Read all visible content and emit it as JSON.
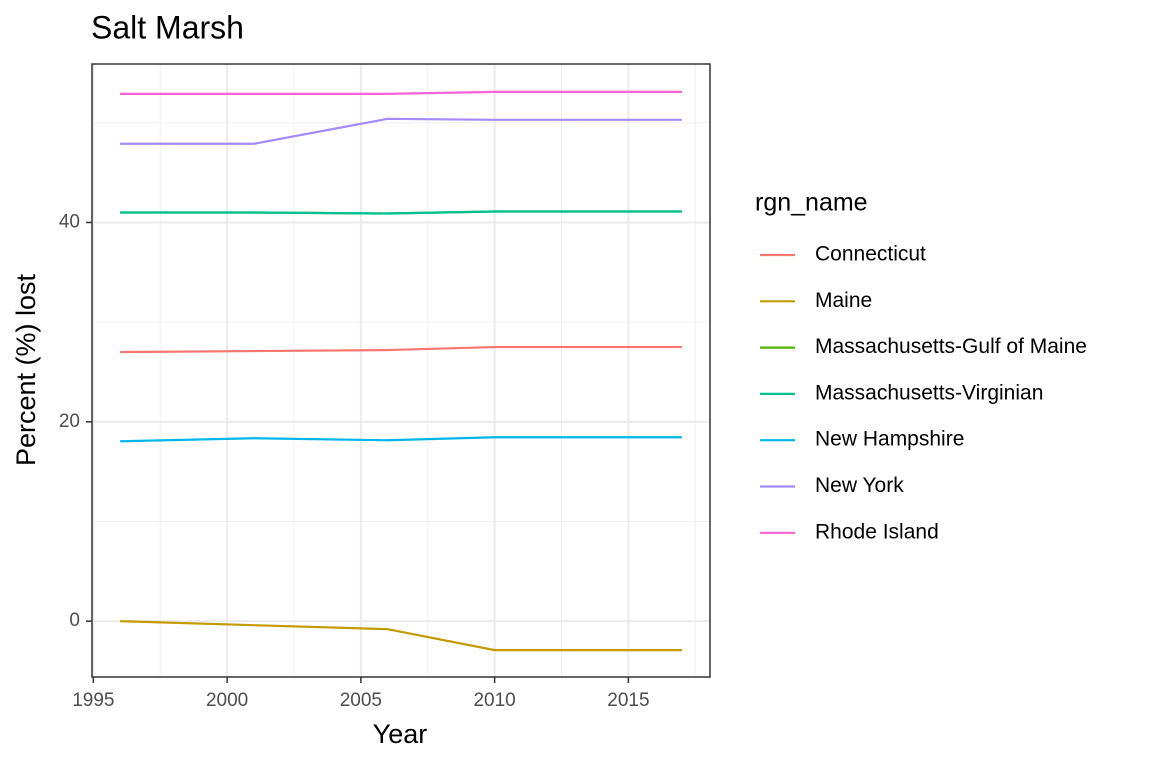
{
  "chart_data": {
    "type": "line",
    "title": "Salt Marsh",
    "x_label": "Year",
    "y_label": "Percent (%) lost",
    "legend_title": "rgn_name",
    "x": [
      1996,
      2001,
      2006,
      2010,
      2017
    ],
    "series": [
      {
        "name": "Connecticut",
        "color": "#F8766D",
        "values": [
          27.0,
          27.1,
          27.2,
          27.5,
          27.5
        ]
      },
      {
        "name": "Maine",
        "color": "#C49A00",
        "values": [
          0,
          -0.4,
          -0.8,
          -2.9,
          -2.9
        ]
      },
      {
        "name": "Massachusetts-Gulf of Maine",
        "color": "#53B400",
        "values": [
          41.0,
          41.0,
          40.9,
          41.1,
          41.1
        ]
      },
      {
        "name": "Massachusetts-Virginian",
        "color": "#00C094",
        "values": [
          41.0,
          41.0,
          40.9,
          41.1,
          41.1
        ]
      },
      {
        "name": "New Hampshire",
        "color": "#00B6EB",
        "values": [
          18.05,
          18.35,
          18.15,
          18.45,
          18.45
        ]
      },
      {
        "name": "New York",
        "color": "#A58AFF",
        "values": [
          47.9,
          47.9,
          50.4,
          50.3,
          50.3
        ]
      },
      {
        "name": "Rhode Island",
        "color": "#FB61D7",
        "values": [
          52.9,
          52.9,
          52.9,
          53.1,
          53.1
        ]
      }
    ],
    "xlim": [
      1994.95,
      2018.05
    ],
    "xticks": [
      1995,
      2000,
      2005,
      2010,
      2015
    ],
    "ylim": [
      -5.6,
      55.9
    ],
    "yticks": [
      0,
      20,
      40
    ],
    "grid": true,
    "minor_grid": true,
    "legend": "right"
  }
}
